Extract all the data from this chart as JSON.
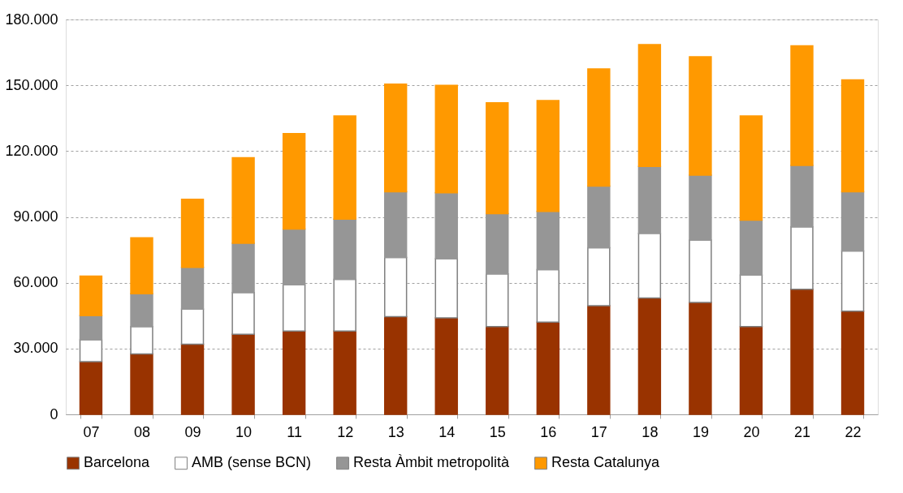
{
  "chart_data": {
    "type": "bar",
    "stacked": true,
    "categories": [
      "07",
      "08",
      "09",
      "10",
      "11",
      "12",
      "13",
      "14",
      "15",
      "16",
      "17",
      "18",
      "19",
      "20",
      "21",
      "22"
    ],
    "series": [
      {
        "name": "Barcelona",
        "color": "#993300",
        "values": [
          24000,
          27500,
          32000,
          36500,
          38000,
          38000,
          44500,
          44000,
          40000,
          42000,
          49500,
          53000,
          51000,
          40000,
          57000,
          47000
        ]
      },
      {
        "name": "AMB (sense BCN)",
        "color": "#ffffff",
        "values": [
          10000,
          12500,
          16000,
          19000,
          21000,
          23500,
          27000,
          27000,
          24000,
          24000,
          26500,
          29500,
          28500,
          23500,
          28500,
          27500
        ]
      },
      {
        "name": "Resta Àmbit metropolità",
        "color": "#969696",
        "values": [
          11000,
          15000,
          19000,
          22500,
          25500,
          27500,
          30000,
          30000,
          27500,
          26500,
          28000,
          30500,
          29500,
          25000,
          28000,
          27000
        ]
      },
      {
        "name": "Resta Catalunya",
        "color": "#ff9900",
        "values": [
          18000,
          25500,
          31000,
          39000,
          43500,
          47000,
          49000,
          49000,
          50500,
          50500,
          53500,
          55500,
          54000,
          47500,
          54500,
          51000
        ]
      }
    ],
    "ylim": [
      0,
      180000
    ],
    "yticks": [
      0,
      {
        "value": 30000,
        "label": "30.000"
      },
      {
        "value": 60000,
        "label": "60.000"
      },
      {
        "value": 90000,
        "label": "90.000"
      },
      {
        "value": 120000,
        "label": "120.000"
      },
      {
        "value": 150000,
        "label": "150.000"
      },
      {
        "value": 180000,
        "label": "180.000"
      }
    ],
    "grid": "y",
    "legend": "bottom"
  }
}
